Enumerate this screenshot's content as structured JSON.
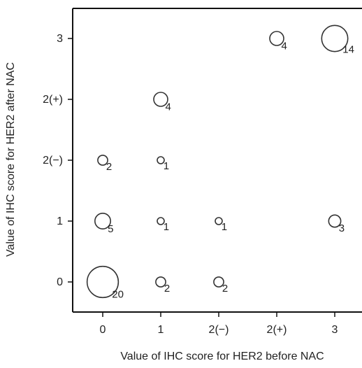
{
  "chart_data": {
    "type": "scatter",
    "title": "",
    "xlabel": "Value of IHC score for HER2 before NAC",
    "ylabel": "Value of IHC score for HER2 after NAC",
    "x_categories": [
      "0",
      "1",
      "2(−)",
      "2(+)",
      "3"
    ],
    "y_categories": [
      "0",
      "1",
      "2(−)",
      "2(+)",
      "3"
    ],
    "points": [
      {
        "x": "0",
        "y": "0",
        "count": 20
      },
      {
        "x": "1",
        "y": "0",
        "count": 2
      },
      {
        "x": "2(−)",
        "y": "0",
        "count": 2
      },
      {
        "x": "0",
        "y": "1",
        "count": 5
      },
      {
        "x": "1",
        "y": "1",
        "count": 1
      },
      {
        "x": "2(−)",
        "y": "1",
        "count": 1
      },
      {
        "x": "3",
        "y": "1",
        "count": 3
      },
      {
        "x": "0",
        "y": "2(−)",
        "count": 2
      },
      {
        "x": "1",
        "y": "2(−)",
        "count": 1
      },
      {
        "x": "1",
        "y": "2(+)",
        "count": 4
      },
      {
        "x": "2(+)",
        "y": "3",
        "count": 4
      },
      {
        "x": "3",
        "y": "3",
        "count": 14
      }
    ],
    "grid": false,
    "legend": "none",
    "colors": {
      "marker_stroke": "#333333",
      "axis": "#111111",
      "text": "#222222"
    }
  }
}
